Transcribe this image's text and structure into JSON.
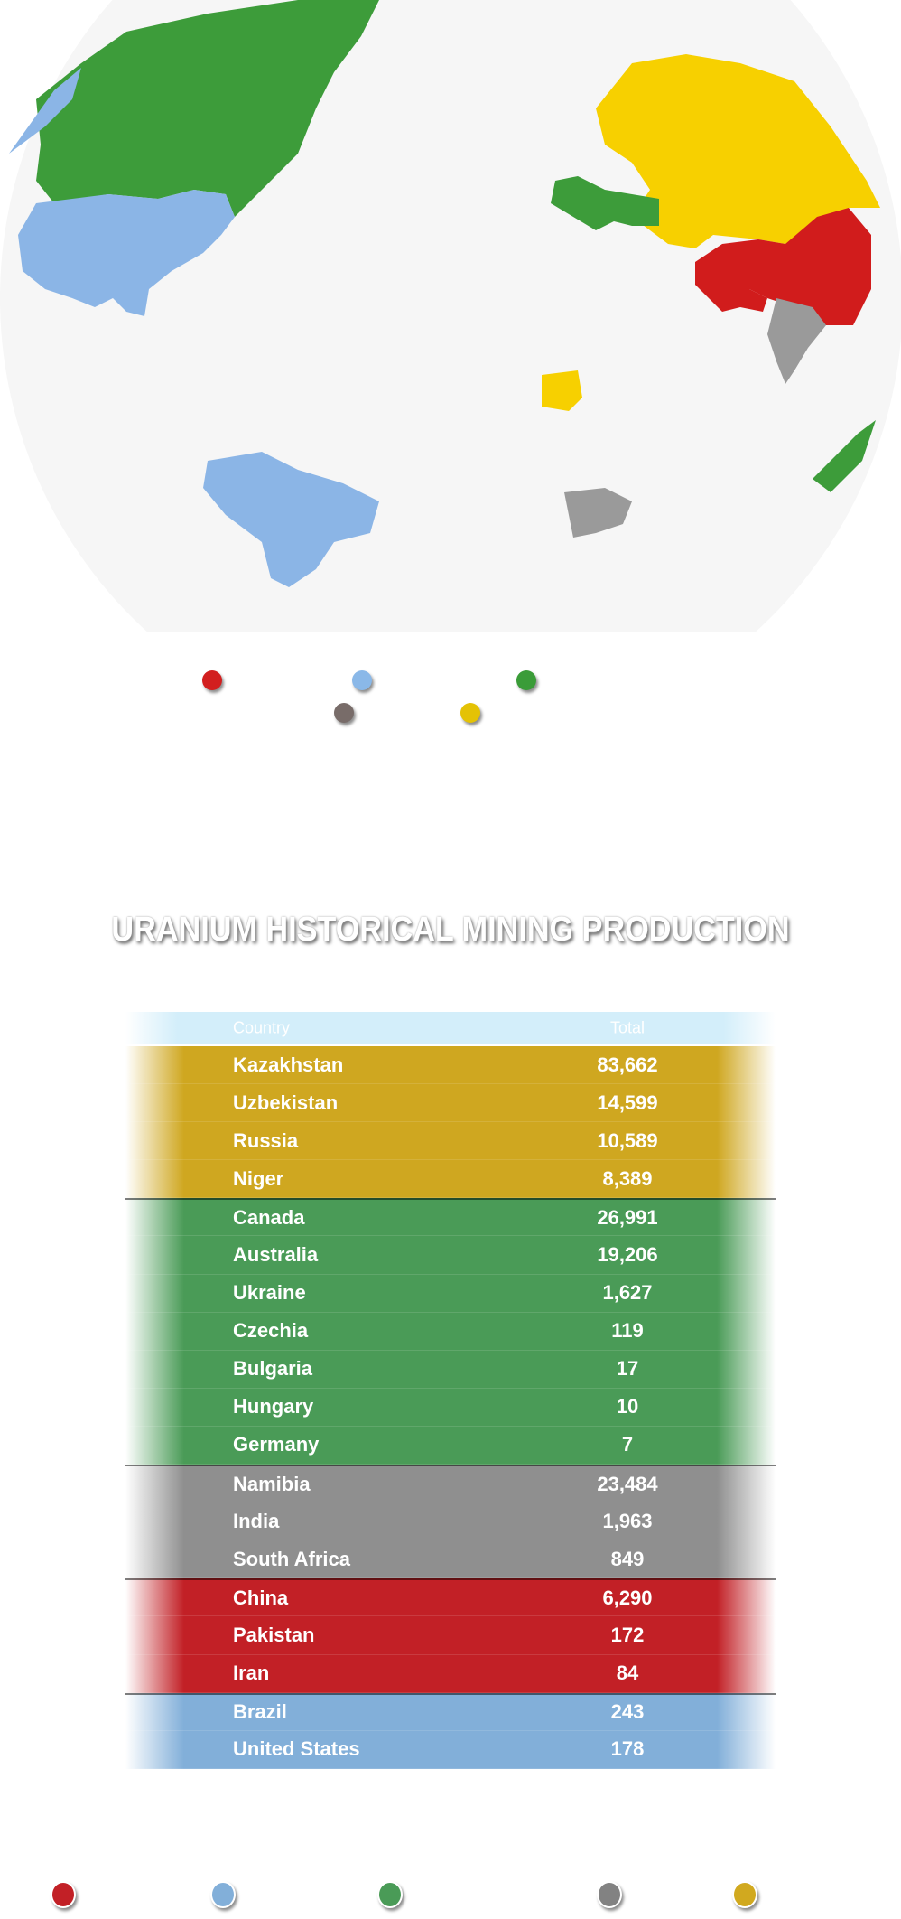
{
  "colors": {
    "red": "#c22026",
    "blue": "#82afd9",
    "green": "#4a9b57",
    "gray": "#8f8f8f",
    "gold": "#cfa720",
    "header": "#d3eefa"
  },
  "map_legend": {
    "dots": [
      {
        "color": "#d21f1f"
      },
      {
        "color": "#8ab8e8"
      },
      {
        "color": "#3a9c38"
      },
      {
        "color": "#786c69"
      },
      {
        "color": "#e4c205"
      }
    ]
  },
  "title": "URANIUM HISTORICAL MINING PRODUCTION",
  "table": {
    "headers": {
      "country": "Country",
      "total": "Total"
    },
    "rows": [
      {
        "country": "Kazakhstan",
        "total": "83,662",
        "group": "gold"
      },
      {
        "country": "Uzbekistan",
        "total": "14,599",
        "group": "gold"
      },
      {
        "country": "Russia",
        "total": "10,589",
        "group": "gold"
      },
      {
        "country": "Niger",
        "total": "8,389",
        "group": "gold"
      },
      {
        "country": "Canada",
        "total": "26,991",
        "group": "green"
      },
      {
        "country": "Australia",
        "total": "19,206",
        "group": "green"
      },
      {
        "country": "Ukraine",
        "total": "1,627",
        "group": "green"
      },
      {
        "country": "Czechia",
        "total": "119",
        "group": "green"
      },
      {
        "country": "Bulgaria",
        "total": "17",
        "group": "green"
      },
      {
        "country": "Hungary",
        "total": "10",
        "group": "green"
      },
      {
        "country": "Germany",
        "total": "7",
        "group": "green"
      },
      {
        "country": "Namibia",
        "total": "23,484",
        "group": "gray"
      },
      {
        "country": "India",
        "total": "1,963",
        "group": "gray"
      },
      {
        "country": "South Africa",
        "total": "849",
        "group": "gray"
      },
      {
        "country": "China",
        "total": "6,290",
        "group": "red"
      },
      {
        "country": "Pakistan",
        "total": "172",
        "group": "red"
      },
      {
        "country": "Iran",
        "total": "84",
        "group": "red"
      },
      {
        "country": "Brazil",
        "total": "243",
        "group": "blue"
      },
      {
        "country": "United States",
        "total": "178",
        "group": "blue"
      }
    ]
  },
  "bottom_legend": {
    "dots": [
      {
        "color": "#c22026"
      },
      {
        "color": "#82afd9"
      },
      {
        "color": "#4a9b57"
      },
      {
        "color": "#828282"
      },
      {
        "color": "#d1a91f"
      }
    ]
  }
}
